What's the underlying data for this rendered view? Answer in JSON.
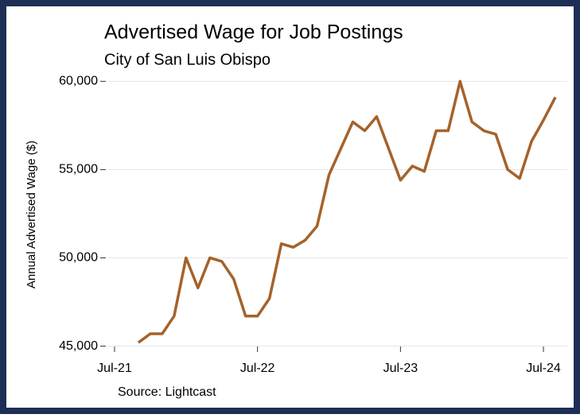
{
  "chart_data": {
    "type": "line",
    "title": "Advertised Wage for Job Postings",
    "subtitle": "City of San Luis Obispo",
    "ylabel": "Annual Advertised Wage ($)",
    "source": "Source: Lightcast",
    "x": [
      "2021-09",
      "2021-10",
      "2021-11",
      "2021-12",
      "2022-01",
      "2022-02",
      "2022-03",
      "2022-04",
      "2022-05",
      "2022-06",
      "2022-07",
      "2022-08",
      "2022-09",
      "2022-10",
      "2022-11",
      "2022-12",
      "2023-01",
      "2023-02",
      "2023-03",
      "2023-04",
      "2023-05",
      "2023-06",
      "2023-07",
      "2023-08",
      "2023-09",
      "2023-10",
      "2023-11",
      "2023-12",
      "2024-01",
      "2024-02",
      "2024-03",
      "2024-04",
      "2024-05",
      "2024-06",
      "2024-07",
      "2024-08"
    ],
    "series": [
      {
        "name": "Annual Advertised Wage",
        "color": "#a5622a",
        "values": [
          45200,
          45700,
          45700,
          46700,
          50000,
          48300,
          50000,
          49800,
          48800,
          46700,
          46700,
          47700,
          50800,
          50600,
          51000,
          51800,
          54700,
          56200,
          57700,
          57200,
          58000,
          56200,
          54400,
          55200,
          54900,
          57200,
          57200,
          60000,
          57700,
          57200,
          57000,
          55000,
          54500,
          56600,
          57800,
          59100
        ]
      }
    ],
    "xlim": [
      "2021-06",
      "2024-09"
    ],
    "xticks": [
      {
        "value": "2021-07",
        "label": "Jul-21"
      },
      {
        "value": "2022-07",
        "label": "Jul-22"
      },
      {
        "value": "2023-07",
        "label": "Jul-23"
      },
      {
        "value": "2024-07",
        "label": "Jul-24"
      }
    ],
    "ylim": [
      44800,
      60600
    ],
    "yticks": [
      {
        "value": 45000,
        "label": "45,000"
      },
      {
        "value": 50000,
        "label": "50,000"
      },
      {
        "value": 55000,
        "label": "55,000"
      },
      {
        "value": 60000,
        "label": "60,000"
      }
    ],
    "grid": true
  }
}
